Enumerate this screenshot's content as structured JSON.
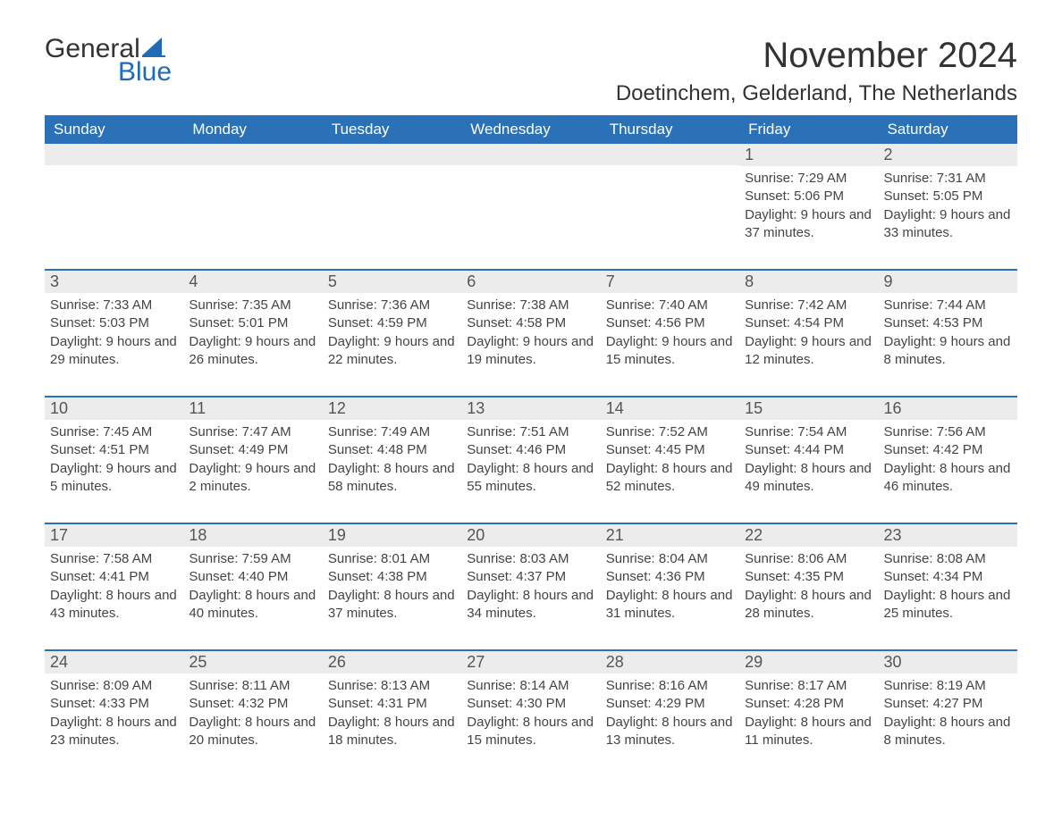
{
  "logo": {
    "word1": "General",
    "word2": "Blue",
    "brand_color": "#1f6bb5"
  },
  "title": "November 2024",
  "location": "Doetinchem, Gelderland, The Netherlands",
  "colors": {
    "header_bg": "#2a71b8",
    "header_text": "#ffffff",
    "row_divider": "#2a71b8",
    "daynum_bg": "#ececec",
    "body_text": "#444444"
  },
  "typography": {
    "title_fontsize": 40,
    "location_fontsize": 24,
    "header_fontsize": 17,
    "body_fontsize": 15
  },
  "day_names": [
    "Sunday",
    "Monday",
    "Tuesday",
    "Wednesday",
    "Thursday",
    "Friday",
    "Saturday"
  ],
  "weeks": [
    [
      {
        "empty": true
      },
      {
        "empty": true
      },
      {
        "empty": true
      },
      {
        "empty": true
      },
      {
        "empty": true
      },
      {
        "n": "1",
        "sunrise": "7:29 AM",
        "sunset": "5:06 PM",
        "daylight": "9 hours and 37 minutes."
      },
      {
        "n": "2",
        "sunrise": "7:31 AM",
        "sunset": "5:05 PM",
        "daylight": "9 hours and 33 minutes."
      }
    ],
    [
      {
        "n": "3",
        "sunrise": "7:33 AM",
        "sunset": "5:03 PM",
        "daylight": "9 hours and 29 minutes."
      },
      {
        "n": "4",
        "sunrise": "7:35 AM",
        "sunset": "5:01 PM",
        "daylight": "9 hours and 26 minutes."
      },
      {
        "n": "5",
        "sunrise": "7:36 AM",
        "sunset": "4:59 PM",
        "daylight": "9 hours and 22 minutes."
      },
      {
        "n": "6",
        "sunrise": "7:38 AM",
        "sunset": "4:58 PM",
        "daylight": "9 hours and 19 minutes."
      },
      {
        "n": "7",
        "sunrise": "7:40 AM",
        "sunset": "4:56 PM",
        "daylight": "9 hours and 15 minutes."
      },
      {
        "n": "8",
        "sunrise": "7:42 AM",
        "sunset": "4:54 PM",
        "daylight": "9 hours and 12 minutes."
      },
      {
        "n": "9",
        "sunrise": "7:44 AM",
        "sunset": "4:53 PM",
        "daylight": "9 hours and 8 minutes."
      }
    ],
    [
      {
        "n": "10",
        "sunrise": "7:45 AM",
        "sunset": "4:51 PM",
        "daylight": "9 hours and 5 minutes."
      },
      {
        "n": "11",
        "sunrise": "7:47 AM",
        "sunset": "4:49 PM",
        "daylight": "9 hours and 2 minutes."
      },
      {
        "n": "12",
        "sunrise": "7:49 AM",
        "sunset": "4:48 PM",
        "daylight": "8 hours and 58 minutes."
      },
      {
        "n": "13",
        "sunrise": "7:51 AM",
        "sunset": "4:46 PM",
        "daylight": "8 hours and 55 minutes."
      },
      {
        "n": "14",
        "sunrise": "7:52 AM",
        "sunset": "4:45 PM",
        "daylight": "8 hours and 52 minutes."
      },
      {
        "n": "15",
        "sunrise": "7:54 AM",
        "sunset": "4:44 PM",
        "daylight": "8 hours and 49 minutes."
      },
      {
        "n": "16",
        "sunrise": "7:56 AM",
        "sunset": "4:42 PM",
        "daylight": "8 hours and 46 minutes."
      }
    ],
    [
      {
        "n": "17",
        "sunrise": "7:58 AM",
        "sunset": "4:41 PM",
        "daylight": "8 hours and 43 minutes."
      },
      {
        "n": "18",
        "sunrise": "7:59 AM",
        "sunset": "4:40 PM",
        "daylight": "8 hours and 40 minutes."
      },
      {
        "n": "19",
        "sunrise": "8:01 AM",
        "sunset": "4:38 PM",
        "daylight": "8 hours and 37 minutes."
      },
      {
        "n": "20",
        "sunrise": "8:03 AM",
        "sunset": "4:37 PM",
        "daylight": "8 hours and 34 minutes."
      },
      {
        "n": "21",
        "sunrise": "8:04 AM",
        "sunset": "4:36 PM",
        "daylight": "8 hours and 31 minutes."
      },
      {
        "n": "22",
        "sunrise": "8:06 AM",
        "sunset": "4:35 PM",
        "daylight": "8 hours and 28 minutes."
      },
      {
        "n": "23",
        "sunrise": "8:08 AM",
        "sunset": "4:34 PM",
        "daylight": "8 hours and 25 minutes."
      }
    ],
    [
      {
        "n": "24",
        "sunrise": "8:09 AM",
        "sunset": "4:33 PM",
        "daylight": "8 hours and 23 minutes."
      },
      {
        "n": "25",
        "sunrise": "8:11 AM",
        "sunset": "4:32 PM",
        "daylight": "8 hours and 20 minutes."
      },
      {
        "n": "26",
        "sunrise": "8:13 AM",
        "sunset": "4:31 PM",
        "daylight": "8 hours and 18 minutes."
      },
      {
        "n": "27",
        "sunrise": "8:14 AM",
        "sunset": "4:30 PM",
        "daylight": "8 hours and 15 minutes."
      },
      {
        "n": "28",
        "sunrise": "8:16 AM",
        "sunset": "4:29 PM",
        "daylight": "8 hours and 13 minutes."
      },
      {
        "n": "29",
        "sunrise": "8:17 AM",
        "sunset": "4:28 PM",
        "daylight": "8 hours and 11 minutes."
      },
      {
        "n": "30",
        "sunrise": "8:19 AM",
        "sunset": "4:27 PM",
        "daylight": "8 hours and 8 minutes."
      }
    ]
  ],
  "labels": {
    "sunrise": "Sunrise:",
    "sunset": "Sunset:",
    "daylight": "Daylight:"
  }
}
